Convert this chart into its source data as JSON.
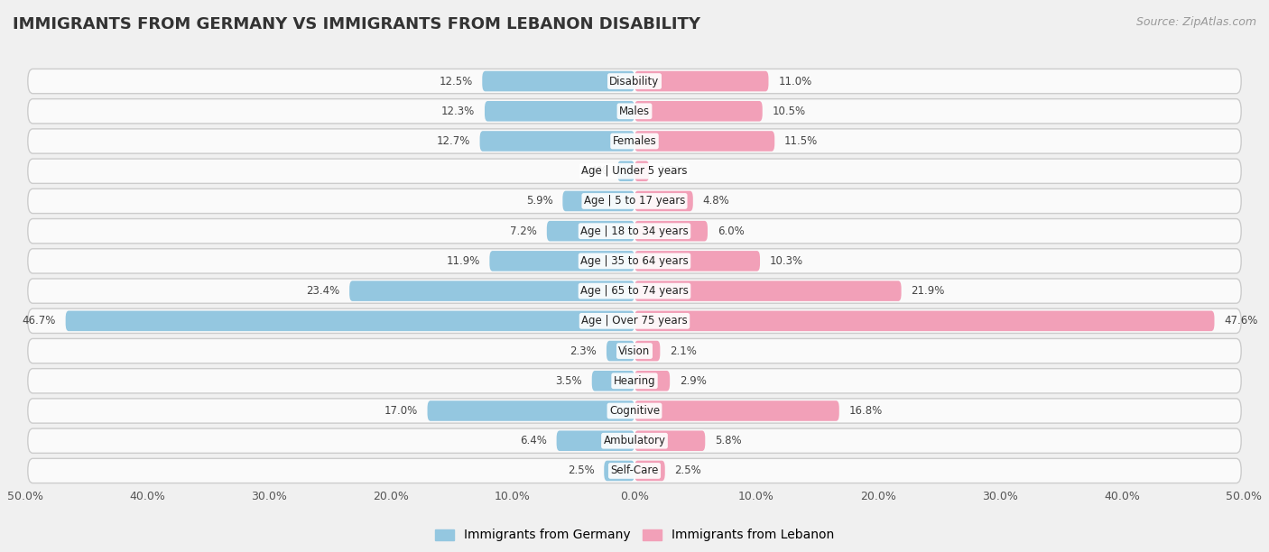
{
  "title": "IMMIGRANTS FROM GERMANY VS IMMIGRANTS FROM LEBANON DISABILITY",
  "source": "Source: ZipAtlas.com",
  "categories": [
    "Disability",
    "Males",
    "Females",
    "Age | Under 5 years",
    "Age | 5 to 17 years",
    "Age | 18 to 34 years",
    "Age | 35 to 64 years",
    "Age | 65 to 74 years",
    "Age | Over 75 years",
    "Vision",
    "Hearing",
    "Cognitive",
    "Ambulatory",
    "Self-Care"
  ],
  "germany_values": [
    12.5,
    12.3,
    12.7,
    1.4,
    5.9,
    7.2,
    11.9,
    23.4,
    46.7,
    2.3,
    3.5,
    17.0,
    6.4,
    2.5
  ],
  "lebanon_values": [
    11.0,
    10.5,
    11.5,
    1.2,
    4.8,
    6.0,
    10.3,
    21.9,
    47.6,
    2.1,
    2.9,
    16.8,
    5.8,
    2.5
  ],
  "germany_color": "#94C7E0",
  "lebanon_color": "#F2A0B8",
  "axis_limit": 50.0,
  "background_color": "#f0f0f0",
  "row_bg_color": "#e8e8e8",
  "row_inner_color": "#fafafa",
  "bar_height": 0.68,
  "title_fontsize": 13,
  "label_fontsize": 8.5,
  "tick_fontsize": 9,
  "legend_fontsize": 10,
  "source_fontsize": 9
}
